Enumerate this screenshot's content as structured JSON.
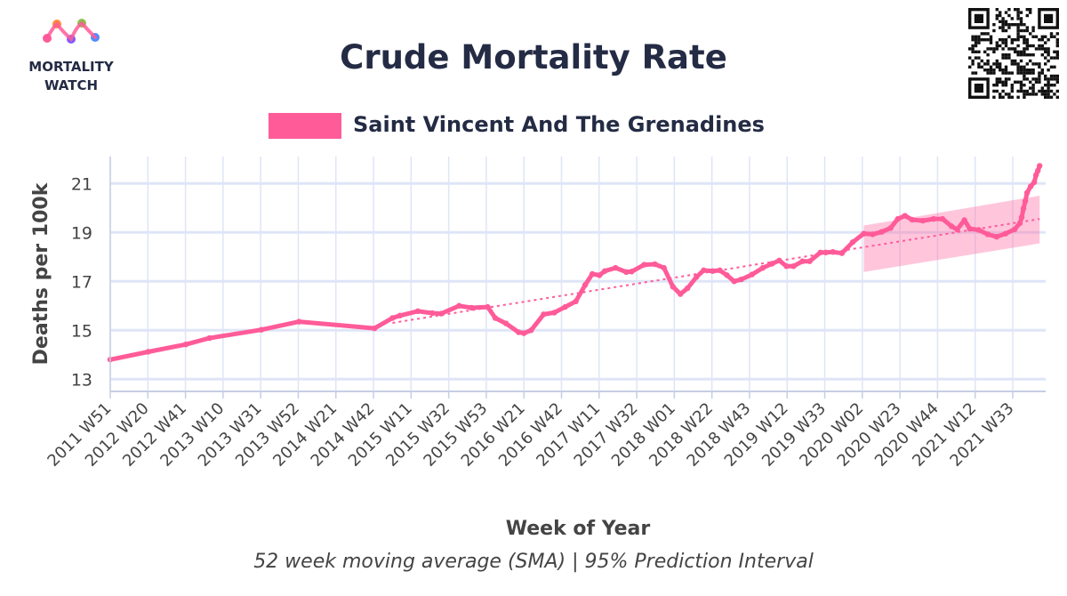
{
  "logo": {
    "line1": "MORTALITY",
    "line2": "WATCH"
  },
  "colors": {
    "series": "#ff5b99",
    "band": "#ff5b99",
    "title": "#242b44",
    "grid": "#dfe5f7",
    "tick_text": "#444444",
    "axis_line": "#c7cee4"
  },
  "chart_data": {
    "type": "line",
    "title": "Crude Mortality Rate",
    "subtitle": "52 week moving average (SMA) | 95% Prediction Interval",
    "xlabel": "Week of Year",
    "ylabel": "Deaths per 100k",
    "ylim": [
      12.5,
      22.1
    ],
    "yticks": [
      13,
      15,
      17,
      19,
      21
    ],
    "grid": true,
    "legend_position": "top-center",
    "x_tick_labels": [
      "2011 W51",
      "2012 W20",
      "2012 W41",
      "2013 W10",
      "2013 W31",
      "2013 W52",
      "2014 W21",
      "2014 W42",
      "2015 W11",
      "2015 W32",
      "2015 W53",
      "2016 W21",
      "2016 W42",
      "2017 W11",
      "2017 W32",
      "2018 W01",
      "2018 W22",
      "2018 W43",
      "2019 W12",
      "2019 W33",
      "2020 W02",
      "2020 W23",
      "2020 W44",
      "2021 W12",
      "2021 W33"
    ],
    "series": [
      {
        "name": "Saint Vincent And The Grenadines",
        "points": [
          [
            "2011 W51",
            13.8
          ],
          [
            "2012 W20",
            14.12
          ],
          [
            "2012 W41",
            14.42
          ],
          [
            "2013 W02",
            14.68
          ],
          [
            "2013 W31",
            15.02
          ],
          [
            "2013 W52",
            15.35
          ],
          [
            "2014 W42",
            15.08
          ],
          [
            "2014 W52",
            15.5
          ],
          [
            "2015 W04",
            15.6
          ],
          [
            "2015 W14",
            15.78
          ],
          [
            "2015 W22",
            15.7
          ],
          [
            "2015 W27",
            15.68
          ],
          [
            "2015 W37",
            16.0
          ],
          [
            "2015 W44",
            15.92
          ],
          [
            "2015 W53",
            15.95
          ],
          [
            "2016 W05",
            15.5
          ],
          [
            "2016 W11",
            15.28
          ],
          [
            "2016 W18",
            14.92
          ],
          [
            "2016 W21",
            14.88
          ],
          [
            "2016 W25",
            15.0
          ],
          [
            "2016 W32",
            15.65
          ],
          [
            "2016 W38",
            15.72
          ],
          [
            "2016 W44",
            15.95
          ],
          [
            "2016 W50",
            16.18
          ],
          [
            "2017 W03",
            16.85
          ],
          [
            "2017 W07",
            17.3
          ],
          [
            "2017 W11",
            17.25
          ],
          [
            "2017 W14",
            17.42
          ],
          [
            "2017 W20",
            17.55
          ],
          [
            "2017 W26",
            17.38
          ],
          [
            "2017 W29",
            17.4
          ],
          [
            "2017 W36",
            17.68
          ],
          [
            "2017 W42",
            17.7
          ],
          [
            "2017 W47",
            17.55
          ],
          [
            "2017 W52",
            16.78
          ],
          [
            "2018 W04",
            16.48
          ],
          [
            "2018 W08",
            16.72
          ],
          [
            "2018 W13",
            17.18
          ],
          [
            "2018 W17",
            17.45
          ],
          [
            "2018 W22",
            17.42
          ],
          [
            "2018 W26",
            17.45
          ],
          [
            "2018 W30",
            17.25
          ],
          [
            "2018 W34",
            17.0
          ],
          [
            "2018 W38",
            17.08
          ],
          [
            "2018 W44",
            17.28
          ],
          [
            "2018 W50",
            17.55
          ],
          [
            "2019 W03",
            17.72
          ],
          [
            "2019 W07",
            17.85
          ],
          [
            "2019 W11",
            17.62
          ],
          [
            "2019 W15",
            17.62
          ],
          [
            "2019 W20",
            17.82
          ],
          [
            "2019 W24",
            17.82
          ],
          [
            "2019 W30",
            18.18
          ],
          [
            "2019 W33",
            18.18
          ],
          [
            "2019 W37",
            18.2
          ],
          [
            "2019 W42",
            18.15
          ],
          [
            "2019 W48",
            18.6
          ],
          [
            "2020 W02",
            18.95
          ],
          [
            "2020 W07",
            18.92
          ],
          [
            "2020 W12",
            19.02
          ],
          [
            "2020 W17",
            19.18
          ],
          [
            "2020 W21",
            19.55
          ],
          [
            "2020 W25",
            19.68
          ],
          [
            "2020 W29",
            19.52
          ],
          [
            "2020 W35",
            19.48
          ],
          [
            "2020 W41",
            19.55
          ],
          [
            "2020 W46",
            19.55
          ],
          [
            "2020 W51",
            19.25
          ],
          [
            "2021 W02",
            19.12
          ],
          [
            "2021 W06",
            19.5
          ],
          [
            "2021 W09",
            19.15
          ],
          [
            "2021 W14",
            19.1
          ],
          [
            "2021 W19",
            18.92
          ],
          [
            "2021 W24",
            18.82
          ],
          [
            "2021 W29",
            18.95
          ],
          [
            "2021 W34",
            19.12
          ],
          [
            "2021 W37",
            19.38
          ],
          [
            "2021 W38",
            19.62
          ],
          [
            "2021 W39",
            19.98
          ],
          [
            "2021 W40",
            20.28
          ],
          [
            "2021 W41",
            20.62
          ],
          [
            "2021 W43",
            20.88
          ],
          [
            "2021 W45",
            21.05
          ],
          [
            "2021 W46",
            21.35
          ],
          [
            "2021 W47",
            21.52
          ],
          [
            "2021 W48",
            21.72
          ]
        ]
      },
      {
        "role": "trend",
        "points": [
          [
            "2014 W52",
            15.3
          ],
          [
            "2021 W48",
            19.55
          ]
        ]
      }
    ],
    "prediction_interval": {
      "x": [
        "2020 W02",
        "2021 W48"
      ],
      "lower": [
        17.38,
        18.55
      ],
      "upper": [
        19.28,
        20.5
      ]
    }
  }
}
